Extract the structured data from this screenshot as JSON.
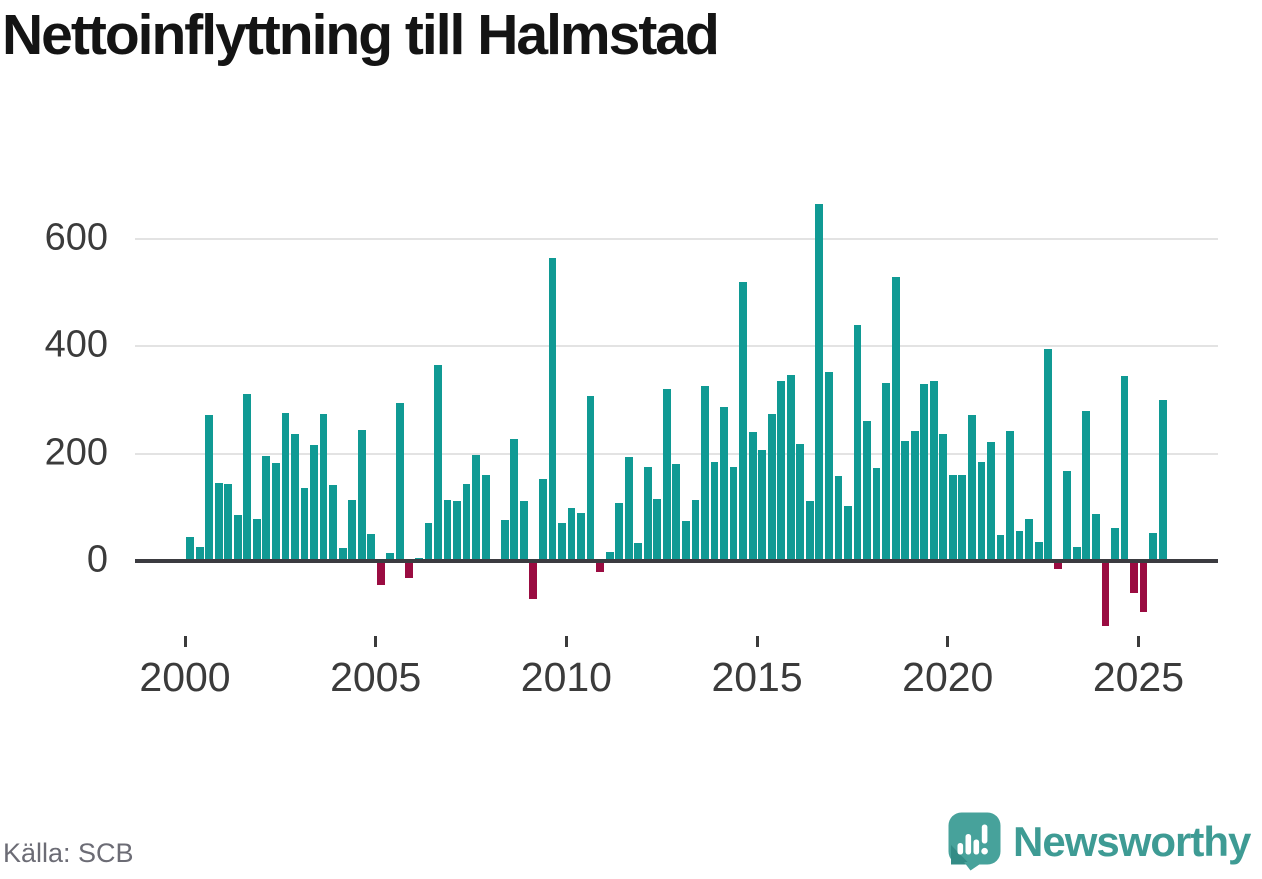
{
  "chart_data": {
    "type": "bar",
    "title": "Nettoinflyttning till Halmstad",
    "frequency": "quarterly",
    "start": {
      "year": 2000,
      "quarter": 1
    },
    "values": [
      45,
      27,
      272,
      146,
      143,
      86,
      311,
      78,
      196,
      182,
      276,
      236,
      136,
      217,
      274,
      141,
      24,
      113,
      244,
      51,
      -45,
      14,
      295,
      -31,
      5,
      70,
      365,
      113,
      112,
      144,
      198,
      160,
      2,
      77,
      228,
      112,
      -70,
      153,
      565,
      71,
      99,
      89,
      307,
      -20,
      17,
      108,
      194,
      33,
      176,
      116,
      320,
      181,
      74,
      114,
      327,
      184,
      287,
      175,
      519,
      241,
      206,
      274,
      336,
      347,
      218,
      112,
      665,
      352,
      158,
      103,
      440,
      261,
      174,
      331,
      529,
      224,
      243,
      330,
      336,
      237,
      160,
      160,
      272,
      185,
      222,
      48,
      243,
      56,
      79,
      36,
      395,
      -14,
      167,
      27,
      279,
      88,
      -121,
      61,
      345,
      -59,
      -95,
      53,
      300
    ],
    "x_ticks": [
      2000,
      2005,
      2010,
      2015,
      2020,
      2025
    ],
    "y_ticks": [
      0,
      200,
      400,
      600
    ],
    "ylim": [
      -135,
      700
    ],
    "grid": true,
    "legend": "none",
    "positive_color": "#109a94",
    "negative_color": "#9a0c41"
  },
  "footer": {
    "source": "Källa: SCB",
    "brand": "Newsworthy",
    "brand_color": "#3e9b94"
  },
  "icons": {
    "logo": "newsworthy-speech-bubble-bar-chart-icon"
  }
}
